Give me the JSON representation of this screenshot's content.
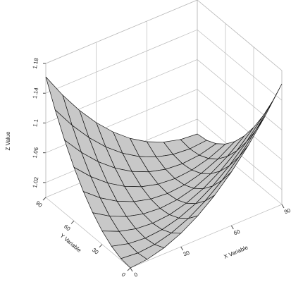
{
  "chart_data": {
    "type": "surface",
    "x_label": "X Variable",
    "y_label": "Y Variable",
    "z_label": "Z Value",
    "x": [
      0,
      10,
      20,
      30,
      40,
      50,
      60,
      70,
      80,
      90
    ],
    "y": [
      0,
      10,
      20,
      30,
      40,
      50,
      60,
      70,
      80,
      90
    ],
    "z": [
      [
        1,
        1.002,
        1.008,
        1.018,
        1.032,
        1.05,
        1.072,
        1.098,
        1.128,
        1.162
      ],
      [
        1.002,
        1,
        1.002,
        1.008,
        1.018,
        1.032,
        1.05,
        1.072,
        1.098,
        1.128
      ],
      [
        1.008,
        1.002,
        1,
        1.002,
        1.008,
        1.018,
        1.032,
        1.05,
        1.072,
        1.098
      ],
      [
        1.018,
        1.008,
        1.002,
        1,
        1.002,
        1.008,
        1.018,
        1.032,
        1.05,
        1.072
      ],
      [
        1.032,
        1.018,
        1.008,
        1.002,
        1,
        1.002,
        1.008,
        1.018,
        1.032,
        1.05
      ],
      [
        1.05,
        1.032,
        1.018,
        1.008,
        1.002,
        1,
        1.002,
        1.008,
        1.018,
        1.032
      ],
      [
        1.072,
        1.05,
        1.032,
        1.018,
        1.008,
        1.002,
        1,
        1.002,
        1.008,
        1.018
      ],
      [
        1.098,
        1.072,
        1.05,
        1.032,
        1.018,
        1.008,
        1.002,
        1,
        1.002,
        1.008
      ],
      [
        1.128,
        1.098,
        1.072,
        1.05,
        1.032,
        1.018,
        1.008,
        1.002,
        1,
        1.002
      ],
      [
        1.162,
        1.128,
        1.098,
        1.072,
        1.05,
        1.032,
        1.018,
        1.008,
        1.002,
        1
      ]
    ],
    "xlim": [
      0,
      90
    ],
    "xticks": [
      0,
      30,
      60,
      90
    ],
    "ylim": [
      0,
      90
    ],
    "yticks": [
      0,
      30,
      60,
      90
    ],
    "zlim": [
      1,
      1.18
    ],
    "zticks": [
      1.02,
      1.06,
      1.1,
      1.14,
      1.18
    ],
    "color": "#c8c8c8",
    "grid": true
  }
}
